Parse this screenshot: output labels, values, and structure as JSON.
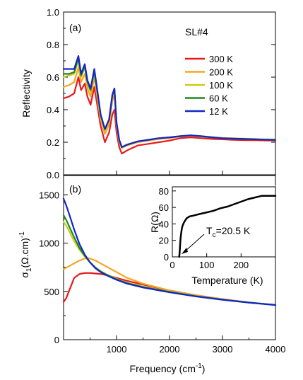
{
  "figure": {
    "sample_label": "SL#4",
    "xlabel_main": "Frequency (cm",
    "xlabel_sup": "-1",
    "xlabel_end": ")"
  },
  "colors": {
    "300 K": "#e8191b",
    "200 K": "#f5a623",
    "100 K": "#c9cc1b",
    "60 K": "#1f8a1f",
    "12 K": "#1226c9",
    "inset": "#000000"
  },
  "chart_data": [
    {
      "type": "line",
      "panel": "(a)",
      "ylabel": "Reflectivity",
      "xlim": [
        0,
        4000
      ],
      "ylim": [
        0.0,
        1.0
      ],
      "yticks": [
        "0.0",
        "0.2",
        "0.4",
        "0.6",
        "0.8",
        "1.0"
      ],
      "legend_position": "upper-right",
      "series": [
        {
          "name": "300 K",
          "x": [
            0,
            100,
            200,
            280,
            330,
            400,
            450,
            510,
            580,
            620,
            700,
            780,
            860,
            920,
            960,
            1000,
            1050,
            1100,
            1200,
            1400,
            1600,
            1800,
            2000,
            2200,
            2400,
            2600,
            2800,
            3000,
            3200,
            3400,
            3600,
            3800,
            4000
          ],
          "y": [
            0.47,
            0.48,
            0.5,
            0.6,
            0.52,
            0.56,
            0.48,
            0.43,
            0.54,
            0.46,
            0.3,
            0.2,
            0.26,
            0.37,
            0.4,
            0.26,
            0.17,
            0.13,
            0.15,
            0.18,
            0.19,
            0.2,
            0.21,
            0.225,
            0.23,
            0.225,
            0.22,
            0.218,
            0.215,
            0.213,
            0.212,
            0.211,
            0.21
          ]
        },
        {
          "name": "200 K",
          "x": [
            0,
            100,
            200,
            280,
            330,
            400,
            450,
            510,
            580,
            620,
            700,
            780,
            860,
            920,
            960,
            1000,
            1050,
            1100,
            1200,
            1400,
            1600,
            1800,
            2000,
            2200,
            2400,
            2600,
            2800,
            3000,
            3200,
            3400,
            3600,
            3800,
            4000
          ],
          "y": [
            0.54,
            0.55,
            0.57,
            0.66,
            0.57,
            0.62,
            0.53,
            0.48,
            0.6,
            0.51,
            0.34,
            0.25,
            0.31,
            0.45,
            0.5,
            0.3,
            0.2,
            0.165,
            0.18,
            0.2,
            0.21,
            0.22,
            0.225,
            0.235,
            0.24,
            0.235,
            0.23,
            0.225,
            0.222,
            0.22,
            0.218,
            0.216,
            0.215
          ]
        },
        {
          "name": "100 K",
          "x": [
            0,
            100,
            200,
            280,
            330,
            400,
            450,
            510,
            580,
            620,
            700,
            780,
            860,
            920,
            960,
            1000,
            1050,
            1100,
            1200,
            1400,
            1600,
            1800,
            2000,
            2200,
            2400,
            2600,
            2800,
            3000,
            3200,
            3400,
            3600,
            3800,
            4000
          ],
          "y": [
            0.6,
            0.61,
            0.62,
            0.7,
            0.6,
            0.66,
            0.56,
            0.51,
            0.63,
            0.54,
            0.36,
            0.27,
            0.33,
            0.48,
            0.53,
            0.32,
            0.21,
            0.17,
            0.185,
            0.205,
            0.215,
            0.225,
            0.23,
            0.238,
            0.243,
            0.238,
            0.232,
            0.227,
            0.224,
            0.222,
            0.22,
            0.218,
            0.217
          ]
        },
        {
          "name": "60 K",
          "x": [
            0,
            100,
            200,
            280,
            330,
            400,
            450,
            510,
            580,
            620,
            700,
            780,
            860,
            920,
            960,
            1000,
            1050,
            1100,
            1200,
            1400,
            1600,
            1800,
            2000,
            2200,
            2400,
            2600,
            2800,
            3000,
            3200,
            3400,
            3600,
            3800,
            4000
          ],
          "y": [
            0.62,
            0.62,
            0.63,
            0.72,
            0.61,
            0.67,
            0.57,
            0.52,
            0.64,
            0.55,
            0.37,
            0.28,
            0.34,
            0.49,
            0.53,
            0.32,
            0.215,
            0.17,
            0.185,
            0.205,
            0.215,
            0.225,
            0.23,
            0.237,
            0.242,
            0.237,
            0.23,
            0.225,
            0.222,
            0.22,
            0.218,
            0.216,
            0.215
          ]
        },
        {
          "name": "12 K",
          "x": [
            0,
            100,
            200,
            280,
            330,
            400,
            450,
            510,
            580,
            620,
            700,
            780,
            860,
            920,
            960,
            1000,
            1050,
            1100,
            1200,
            1400,
            1600,
            1800,
            2000,
            2200,
            2400,
            2600,
            2800,
            3000,
            3200,
            3400,
            3600,
            3800,
            4000
          ],
          "y": [
            0.65,
            0.65,
            0.65,
            0.73,
            0.62,
            0.68,
            0.58,
            0.53,
            0.65,
            0.56,
            0.37,
            0.28,
            0.34,
            0.49,
            0.53,
            0.32,
            0.215,
            0.17,
            0.185,
            0.205,
            0.215,
            0.225,
            0.23,
            0.237,
            0.242,
            0.237,
            0.23,
            0.225,
            0.222,
            0.22,
            0.218,
            0.216,
            0.215
          ]
        }
      ]
    },
    {
      "type": "line",
      "panel": "(b)",
      "ylabel_main": "σ",
      "ylabel_sub": "1",
      "ylabel_rest": "(Ω.cm)",
      "ylabel_sup": "-1",
      "xlim": [
        0,
        4000
      ],
      "ylim": [
        0,
        1700
      ],
      "yticks": [
        "0",
        "500",
        "1000",
        "1500"
      ],
      "xticks": [
        "1000",
        "2000",
        "3000",
        "4000"
      ],
      "series": [
        {
          "name": "300 K",
          "x": [
            0,
            50,
            100,
            150,
            200,
            300,
            400,
            500,
            600,
            700,
            800,
            1000,
            1200,
            1500,
            2000,
            2500,
            3000,
            3500,
            4000
          ],
          "y": [
            390,
            430,
            500,
            570,
            640,
            680,
            690,
            690,
            685,
            680,
            670,
            640,
            610,
            570,
            510,
            460,
            420,
            385,
            360
          ]
        },
        {
          "name": "200 K",
          "x": [
            0,
            50,
            100,
            200,
            300,
            400,
            450,
            500,
            600,
            700,
            800,
            1000,
            1200,
            1500,
            2000,
            2500,
            3000,
            3500,
            4000
          ],
          "y": [
            730,
            745,
            760,
            790,
            820,
            840,
            845,
            840,
            820,
            790,
            760,
            700,
            640,
            580,
            510,
            460,
            420,
            385,
            360
          ]
        },
        {
          "name": "100 K",
          "x": [
            0,
            50,
            100,
            200,
            300,
            400,
            500,
            600,
            700,
            800,
            1000,
            1200,
            1500,
            2000,
            2500,
            3000,
            3500,
            4000
          ],
          "y": [
            1220,
            1180,
            1130,
            1020,
            930,
            860,
            800,
            750,
            710,
            680,
            630,
            590,
            550,
            495,
            450,
            415,
            385,
            360
          ]
        },
        {
          "name": "60 K",
          "x": [
            0,
            50,
            100,
            200,
            300,
            400,
            500,
            600,
            700,
            800,
            1000,
            1200,
            1500,
            2000,
            2500,
            3000,
            3500,
            4000
          ],
          "y": [
            1290,
            1240,
            1180,
            1060,
            950,
            870,
            800,
            745,
            705,
            675,
            625,
            585,
            545,
            495,
            450,
            415,
            385,
            360
          ]
        },
        {
          "name": "12 K",
          "x": [
            0,
            50,
            100,
            200,
            300,
            400,
            500,
            600,
            700,
            800,
            1000,
            1200,
            1500,
            2000,
            2500,
            3000,
            3500,
            4000
          ],
          "y": [
            1460,
            1390,
            1310,
            1140,
            990,
            880,
            800,
            740,
            700,
            670,
            620,
            580,
            540,
            490,
            448,
            413,
            383,
            358
          ]
        }
      ]
    },
    {
      "type": "line",
      "panel": "inset",
      "ylabel": "R(Ω)",
      "xlabel": "Temperature (K)",
      "annotation_main": "T",
      "annotation_sub": "c",
      "annotation_rest": "=20.5 K",
      "xlim": [
        0,
        300
      ],
      "ylim": [
        0,
        85
      ],
      "xticks": [
        "0",
        "100",
        "200"
      ],
      "yticks": [
        "0",
        "20",
        "40",
        "60",
        "80"
      ],
      "series": [
        {
          "name": "R",
          "x": [
            20,
            21,
            22,
            23,
            24,
            26,
            28,
            30,
            33,
            37,
            42,
            50,
            60,
            80,
            100,
            120,
            140,
            160,
            180,
            200,
            220,
            240,
            260,
            280,
            300
          ],
          "y": [
            0,
            4,
            10,
            17,
            23,
            30,
            35,
            38,
            41,
            44,
            47,
            49,
            50,
            52,
            54,
            56,
            59,
            61,
            64,
            67,
            70,
            72,
            74,
            74,
            74
          ]
        }
      ]
    }
  ]
}
